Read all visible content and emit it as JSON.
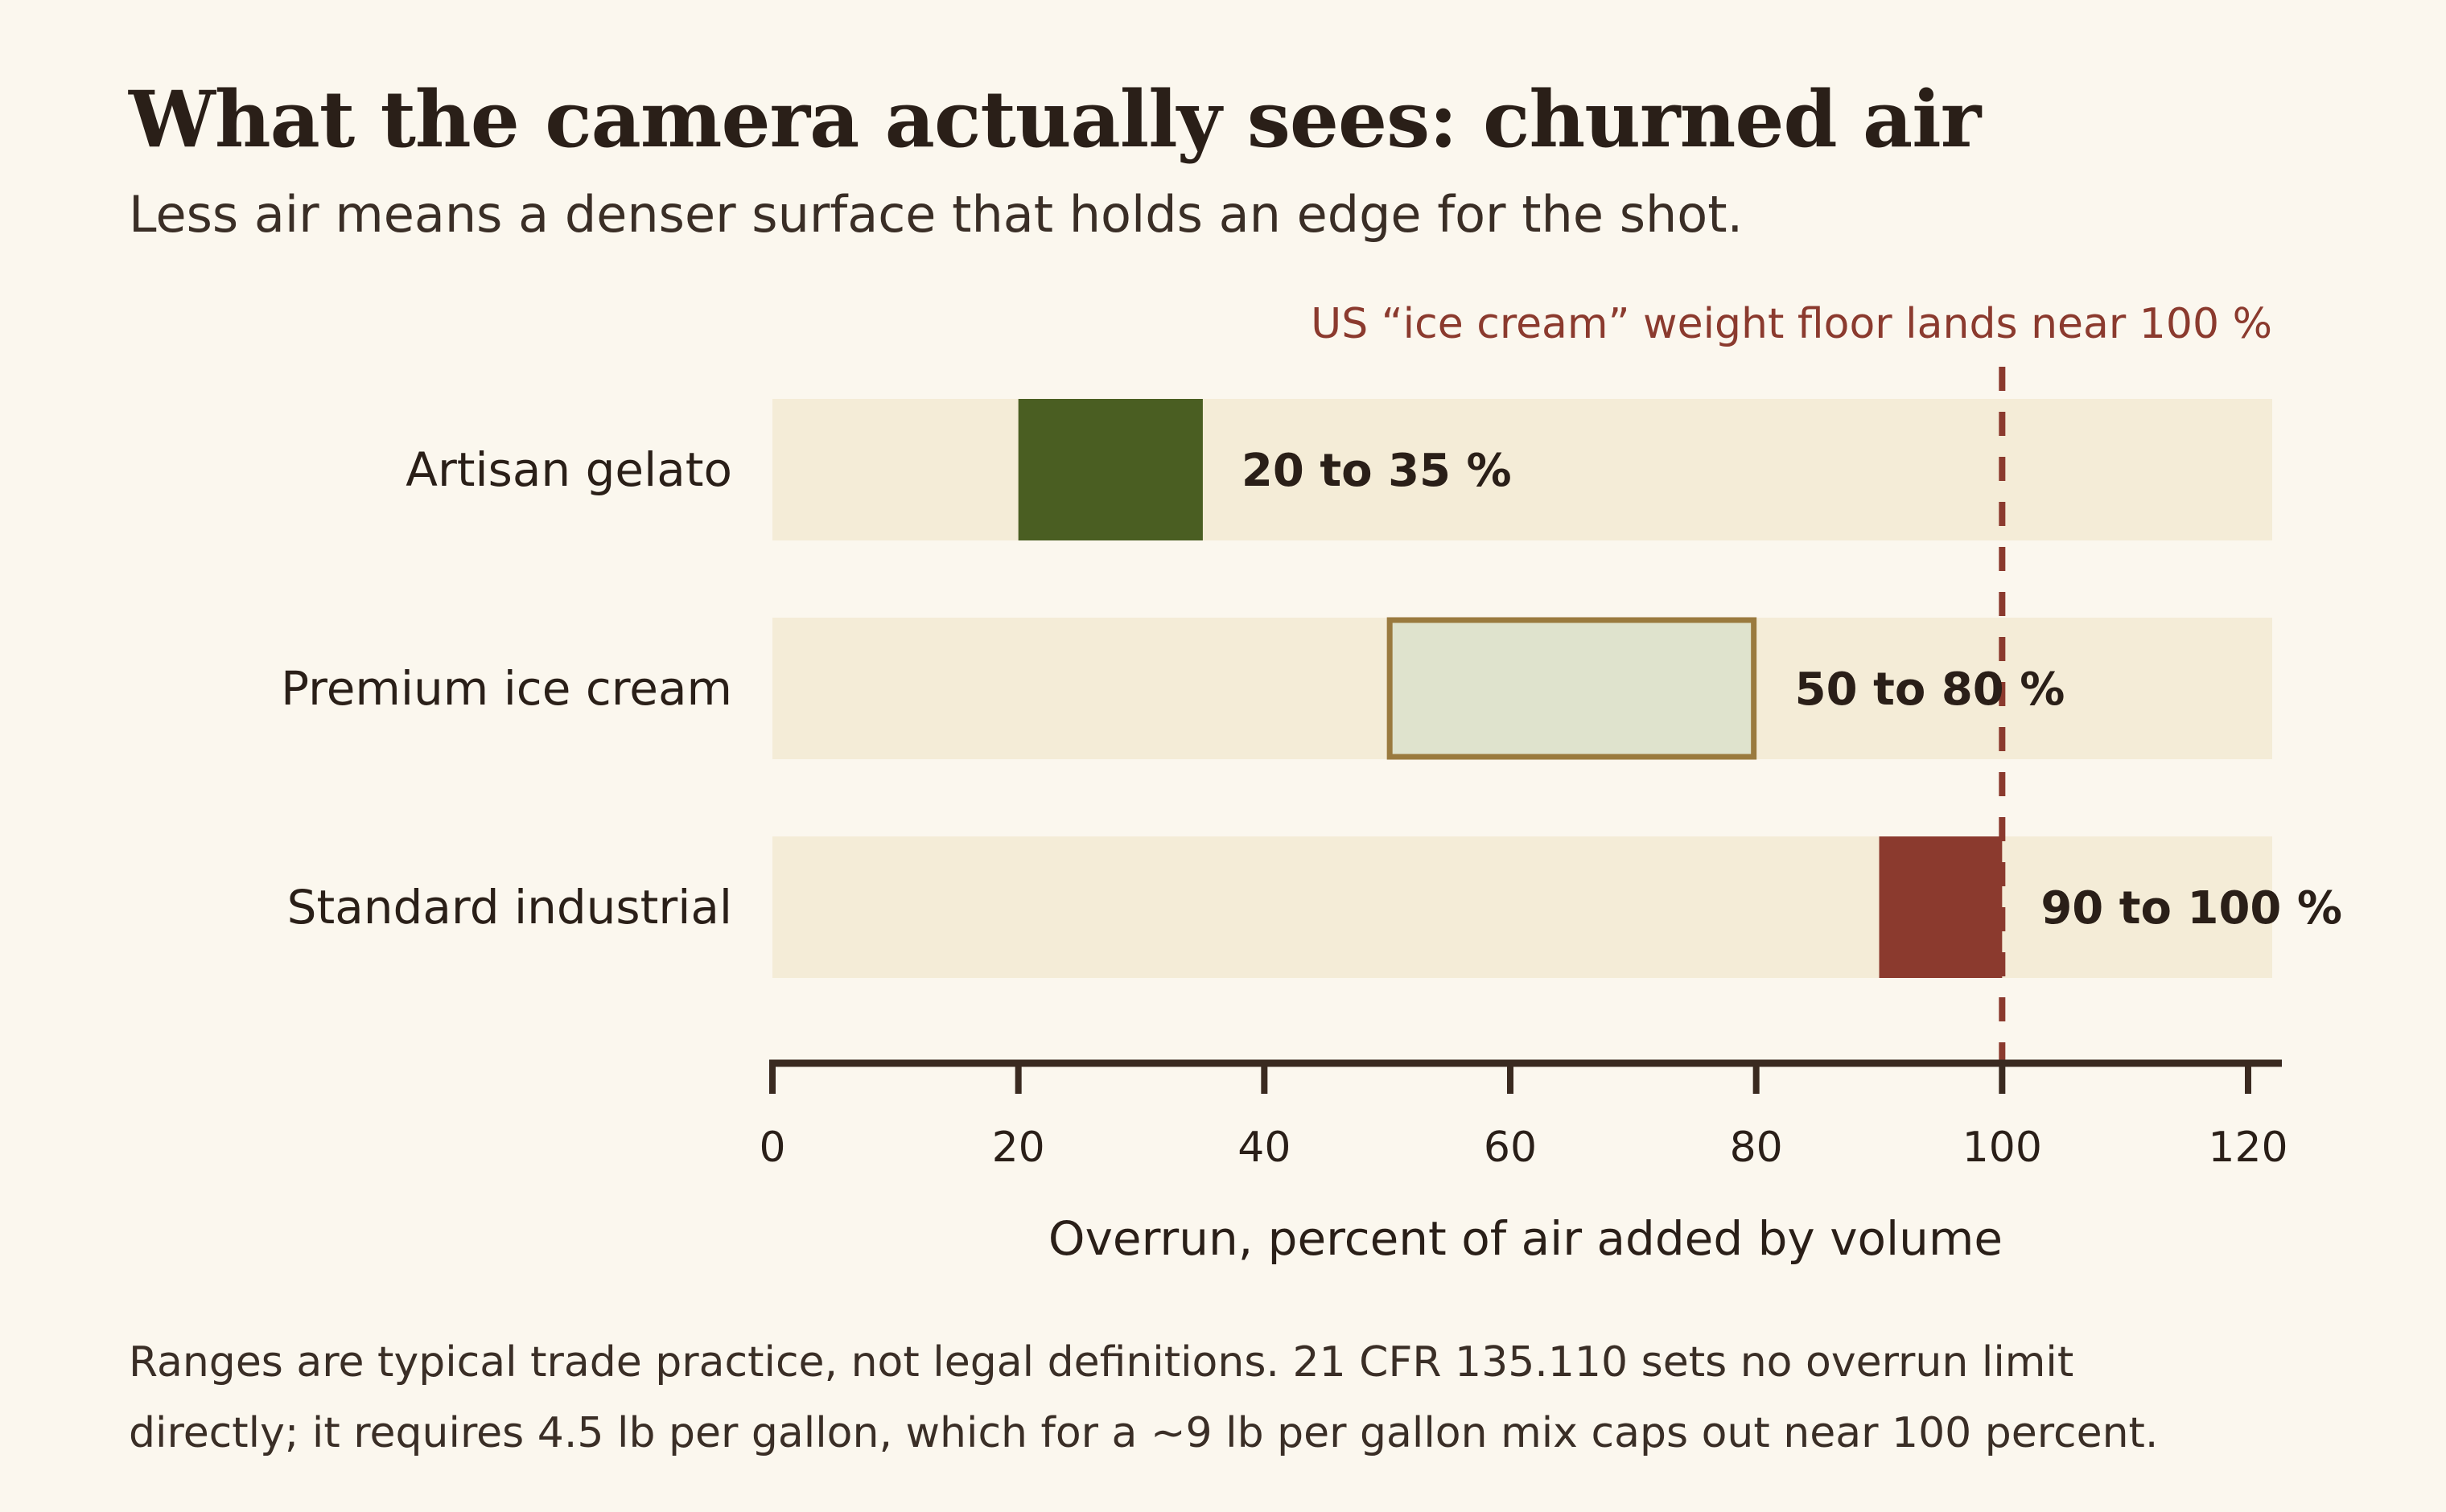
{
  "chart_data": {
    "type": "bar",
    "subtype": "range",
    "title": "What the camera actually sees: churned air",
    "subtitle": "Less air means a denser surface that holds an edge for the shot.",
    "categories": [
      "Artisan gelato",
      "Premium ice cream",
      "Standard industrial"
    ],
    "ranges": [
      {
        "category": "Artisan gelato",
        "low": 20,
        "high": 35,
        "label": "20 to 35 %",
        "color": "#4a5e22",
        "style": "solid"
      },
      {
        "category": "Premium ice cream",
        "low": 50,
        "high": 80,
        "label": "50 to 80 %",
        "color": "#dfe3cd",
        "border": "#9a7a3e",
        "style": "outlined"
      },
      {
        "category": "Standard industrial",
        "low": 90,
        "high": 100,
        "label": "90 to 100 %",
        "color": "#8b3a2e",
        "style": "solid"
      }
    ],
    "xlabel": "Overrun, percent of air added by volume",
    "xlim": [
      0,
      120
    ],
    "xticks": [
      "0",
      "20",
      "40",
      "60",
      "80",
      "100",
      "120"
    ],
    "reference_line": {
      "x": 100,
      "label": "US “ice cream” weight floor lands near 100 %",
      "color": "#8b3a2e",
      "style": "dashed"
    },
    "track_color": "#f4ecd7",
    "axis_color": "#3a2a20",
    "grid": false,
    "legend": "none"
  },
  "footnote": {
    "line1": "Ranges are typical trade practice, not legal definitions. 21 CFR 135.110 sets no overrun limit",
    "line2": "directly; it requires 4.5 lb per gallon, which for a ~9 lb per gallon mix caps out near 100 percent."
  }
}
